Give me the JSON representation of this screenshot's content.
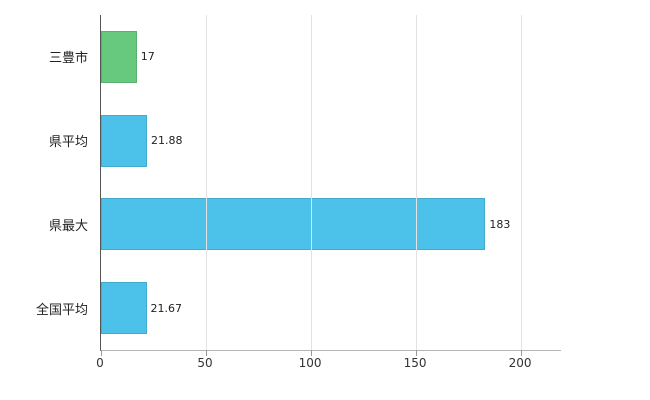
{
  "chart_data": {
    "type": "bar",
    "orientation": "horizontal",
    "title": "",
    "xlabel": "",
    "ylabel": "",
    "categories": [
      "三豊市",
      "県平均",
      "県最大",
      "全国平均"
    ],
    "values": [
      17,
      21.88,
      183,
      21.67
    ],
    "value_labels": [
      "17",
      "21.88",
      "183",
      "21.67"
    ],
    "bar_colors": [
      "#66c97e",
      "#4cc2ea",
      "#4cc2ea",
      "#4cc2ea"
    ],
    "xlim": [
      0,
      219
    ],
    "xticks": [
      0,
      50,
      100,
      150,
      200
    ],
    "grid": "vertical",
    "legend": "none",
    "background_color": "#ffffff",
    "axis_color": "#555555",
    "gridline_color": "#e2e2e2"
  }
}
